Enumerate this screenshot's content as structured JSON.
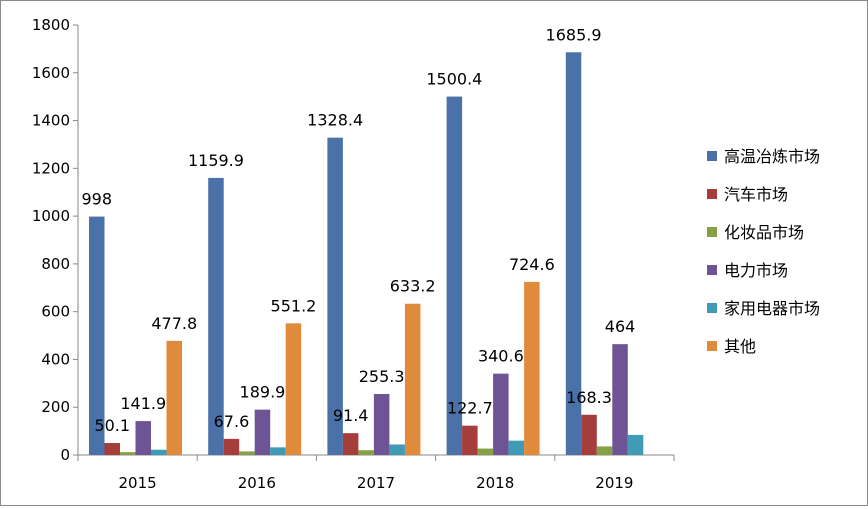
{
  "chart_data": {
    "type": "bar",
    "title": "",
    "xlabel": "",
    "ylabel": "",
    "categories": [
      "2015",
      "2016",
      "2017",
      "2018",
      "2019"
    ],
    "ylim": [
      0,
      1800
    ],
    "yticks": [
      0,
      200,
      400,
      600,
      800,
      1000,
      1200,
      1400,
      1600,
      1800
    ],
    "grid": false,
    "legend_position": "right",
    "series": [
      {
        "name": "高温冶炼市场",
        "color": "#4a72a8",
        "values": [
          998,
          1159.9,
          1328.4,
          1500.4,
          1685.9
        ],
        "labels": [
          "998",
          "1159.9",
          "1328.4",
          "1500.4",
          "1685.9"
        ]
      },
      {
        "name": "汽车市场",
        "color": "#a53d3a",
        "values": [
          50.1,
          67.6,
          91.4,
          122.7,
          168.3
        ],
        "labels": [
          "50.1",
          "67.6",
          "91.4",
          "122.7",
          "168.3"
        ]
      },
      {
        "name": "化妆品市场",
        "color": "#86a046",
        "values": [
          12,
          15,
          20,
          27,
          36
        ],
        "labels": [
          null,
          null,
          null,
          null,
          null
        ]
      },
      {
        "name": "电力市场",
        "color": "#6e5395",
        "values": [
          141.9,
          189.9,
          255.3,
          340.6,
          464
        ],
        "labels": [
          "141.9",
          "189.9",
          "255.3",
          "340.6",
          "464"
        ]
      },
      {
        "name": "家用电器市场",
        "color": "#3f9bb6",
        "values": [
          22,
          32,
          44,
          60,
          84
        ],
        "labels": [
          null,
          null,
          null,
          null,
          null
        ]
      },
      {
        "name": "其他",
        "color": "#e08a3c",
        "values": [
          477.8,
          551.2,
          633.2,
          724.6,
          null
        ],
        "labels": [
          "477.8",
          "551.2",
          "633.2",
          "724.6",
          null
        ]
      }
    ]
  }
}
